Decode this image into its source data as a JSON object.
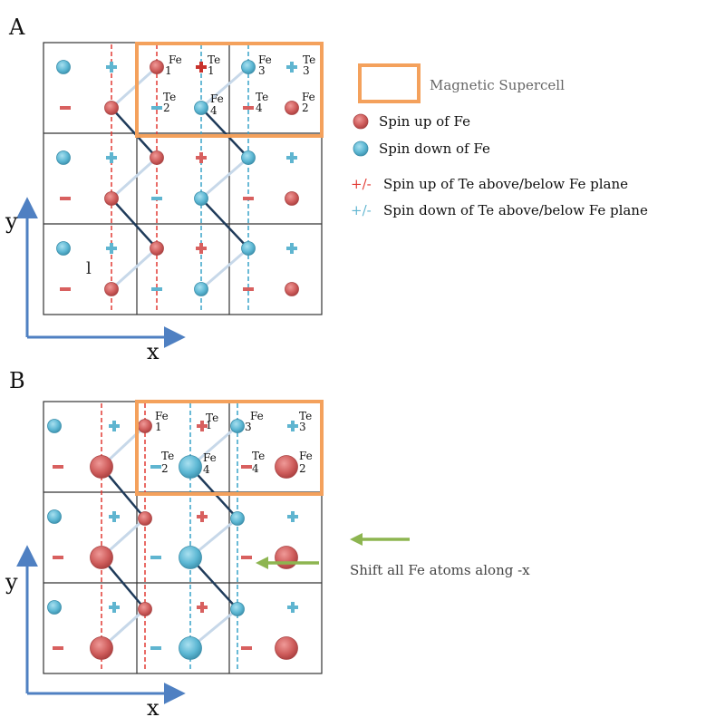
{
  "panel_a": {
    "label": "A",
    "axis_x": "x",
    "axis_y": "y",
    "atom_labels": {
      "fe1": {
        "name": "Fe",
        "index": "1"
      },
      "te1": {
        "name": "Te",
        "index": "1"
      },
      "fe3": {
        "name": "Fe",
        "index": "3"
      },
      "te3": {
        "name": "Te",
        "index": "3"
      },
      "te2": {
        "name": "Te",
        "index": "2"
      },
      "fe4": {
        "name": "Fe",
        "index": "4"
      },
      "te4": {
        "name": "Te",
        "index": "4"
      },
      "fe2": {
        "name": "Fe",
        "index": "2"
      }
    },
    "stray_mark": "l"
  },
  "panel_b": {
    "label": "B",
    "axis_x": "x",
    "axis_y": "y",
    "atom_labels": {
      "fe1": {
        "name": "Fe",
        "index": "1"
      },
      "te1": {
        "name": "Te",
        "index": "1"
      },
      "fe3": {
        "name": "Fe",
        "index": "3"
      },
      "te3": {
        "name": "Te",
        "index": "3"
      },
      "te2": {
        "name": "Te",
        "index": "2"
      },
      "fe4": {
        "name": "Fe",
        "index": "4"
      },
      "te4": {
        "name": "Te",
        "index": "4"
      },
      "fe2": {
        "name": "Fe",
        "index": "2"
      }
    },
    "shift_note": "Shift all Fe atoms along -x"
  },
  "legend": {
    "supercell": "Magnetic Supercell",
    "spin_up_fe": "Spin up of Fe",
    "spin_down_fe": "Spin down of Fe",
    "te_up_symbols": "+/-",
    "te_up_text": "Spin up of Te above/below Fe plane",
    "te_down_symbols": "+/-",
    "te_down_text": "Spin down of Te above/below Fe plane"
  },
  "colors": {
    "fe_up": "#cd5b5b",
    "fe_down": "#5cb7d3",
    "te_up": "#d8605f",
    "te_down": "#5fb5d0",
    "te_plus_dark": "#c8322c",
    "supercell": "#f4a15c",
    "bond_dark": "#1f3b5a",
    "bond_light": "#c7d8e9",
    "red_dash": "#e23a33",
    "blue_dash": "#39a3c8",
    "axis": "#4f80c2",
    "arrow": "#8db550",
    "grid": "#333333"
  }
}
